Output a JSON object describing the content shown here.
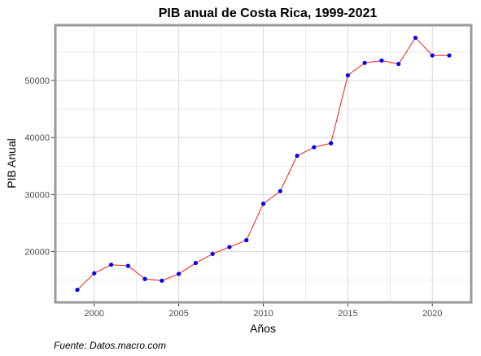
{
  "chart_data": {
    "type": "line",
    "title": "PIB anual de Costa Rica, 1999-2021",
    "xlabel": "Años",
    "ylabel": "PIB Anual",
    "caption": "Fuente: Datos.macro.com",
    "x": [
      1999,
      2000,
      2001,
      2002,
      2003,
      2004,
      2005,
      2006,
      2007,
      2008,
      2009,
      2010,
      2011,
      2012,
      2013,
      2014,
      2015,
      2016,
      2017,
      2018,
      2019,
      2020,
      2021
    ],
    "series": [
      {
        "values": [
          13300,
          16200,
          17700,
          17500,
          15200,
          14900,
          16100,
          18000,
          19600,
          20800,
          22000,
          28400,
          30600,
          36800,
          38300,
          39000,
          50900,
          53100,
          53500,
          52900,
          57500,
          54400,
          54400
        ]
      }
    ],
    "xlim": [
      1997.7,
      2022.3
    ],
    "ylim": [
      11100,
      59700
    ],
    "xticks": [
      2000,
      2005,
      2010,
      2015,
      2020
    ],
    "yticks": [
      20000,
      30000,
      40000,
      50000
    ],
    "xtick_labels": [
      "2000",
      "2005",
      "2010",
      "2015",
      "2020"
    ],
    "ytick_labels": [
      "20000",
      "30000",
      "40000",
      "50000"
    ],
    "grid": true,
    "colors": {
      "line": "#ff0000",
      "point": "#0000ff",
      "grid": "#dcdcdc",
      "border": "#999999"
    }
  }
}
